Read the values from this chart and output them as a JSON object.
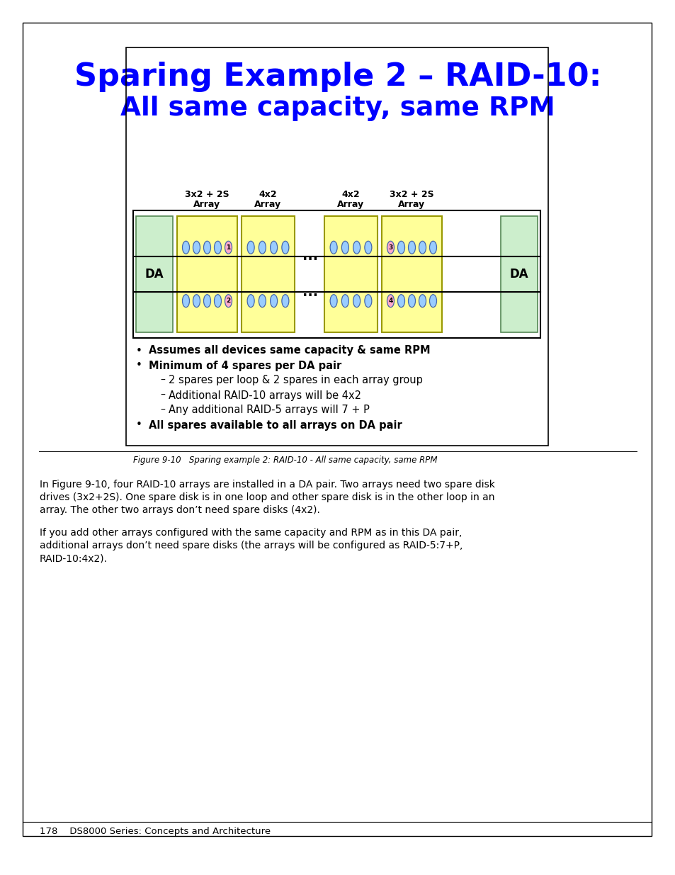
{
  "title_line1": "Sparing Example 2 – RAID-10:",
  "title_line2": "All same capacity, same RPM",
  "title_color": "#0000FF",
  "da_color": "#CCEECC",
  "array_color": "#FFFF99",
  "disk_color": "#99CCFF",
  "spare_color": "#FFAACC",
  "bullet_points": [
    {
      "text": "Assumes all devices same capacity & same RPM",
      "bold": true,
      "level": 0
    },
    {
      "text": "Minimum of 4 spares per DA pair",
      "bold": true,
      "level": 0
    },
    {
      "text": "2 spares per loop & 2 spares in each array group",
      "bold": false,
      "level": 1
    },
    {
      "text": "Additional RAID-10 arrays will be 4x2",
      "bold": false,
      "level": 1
    },
    {
      "text": "Any additional RAID-5 arrays will 7 + P",
      "bold": false,
      "level": 1
    },
    {
      "text": "All spares available to all arrays on DA pair",
      "bold": true,
      "level": 0
    }
  ],
  "figure_caption": "Figure 9-10   Sparing example 2: RAID-10 - All same capacity, same RPM",
  "para1": "In Figure 9-10, four RAID-10 arrays are installed in a DA pair. Two arrays need two spare disk drives (3x2+2S). One spare disk is in one loop and other spare disk is in the other loop in an array. The other two arrays don’t need spare disks (4x2).",
  "para2": "If you add other arrays configured with the same capacity and RPM as in this DA pair, additional arrays don’t need spare disks (the arrays will be configured as RAID-5:7+P, RAID-10:4x2).",
  "footer": "178    DS8000 Series: Concepts and Architecture"
}
